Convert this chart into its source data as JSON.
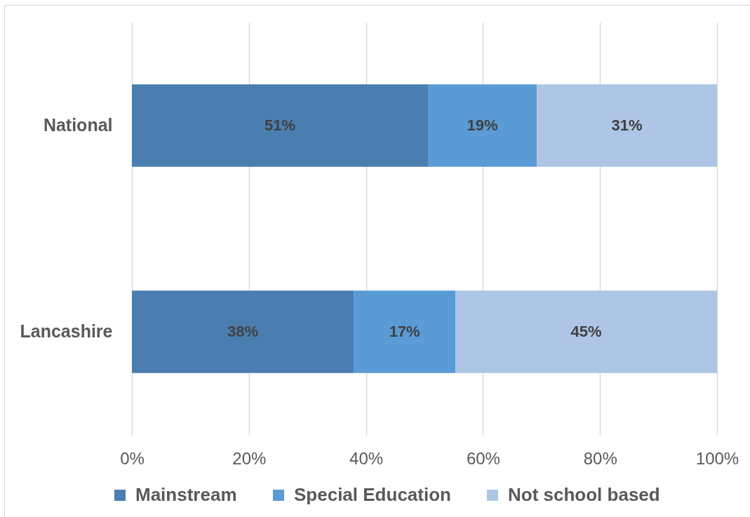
{
  "chart_data": {
    "type": "bar",
    "orientation": "horizontal",
    "stacked": true,
    "categories": [
      "National",
      "Lancashire"
    ],
    "series": [
      {
        "name": "Mainstream",
        "color": "#4a7eb0",
        "values": [
          50.6,
          37.9
        ],
        "value_labels": [
          "51%",
          "38%"
        ]
      },
      {
        "name": "Special Education",
        "color": "#5b9bd5",
        "values": [
          18.6,
          17.4
        ],
        "value_labels": [
          "19%",
          "17%"
        ]
      },
      {
        "name": "Not school based",
        "color": "#adc6e5",
        "values": [
          30.8,
          44.7
        ],
        "value_labels": [
          "31%",
          "45%"
        ]
      }
    ],
    "xlim": [
      0,
      100
    ],
    "xticks": [
      {
        "value": 0,
        "label": "0%"
      },
      {
        "value": 20,
        "label": "20%"
      },
      {
        "value": 40,
        "label": "40%"
      },
      {
        "value": 60,
        "label": "60%"
      },
      {
        "value": 80,
        "label": "80%"
      },
      {
        "value": 100,
        "label": "100%"
      }
    ],
    "grid": "x",
    "legend": "bottom"
  }
}
